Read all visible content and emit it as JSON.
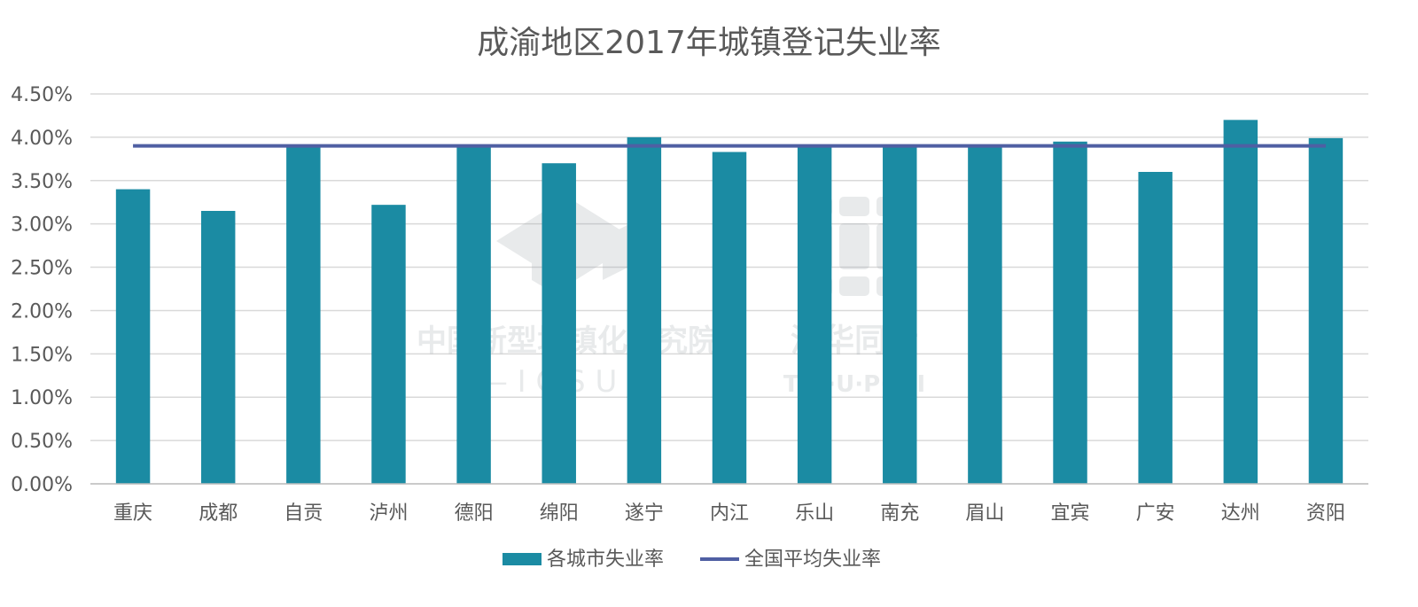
{
  "chart_data": {
    "type": "bar",
    "title": "成渝地区2017年城镇登记失业率",
    "categories": [
      "重庆",
      "成都",
      "自贡",
      "泸州",
      "德阳",
      "绵阳",
      "遂宁",
      "内江",
      "乐山",
      "南充",
      "眉山",
      "宜宾",
      "广安",
      "达州",
      "资阳"
    ],
    "series": [
      {
        "name": "各城市失业率",
        "type": "bar",
        "color": "#1B8BA3",
        "values": [
          3.4,
          3.15,
          3.9,
          3.22,
          3.9,
          3.7,
          4.0,
          3.83,
          3.9,
          3.9,
          3.9,
          3.95,
          3.6,
          4.2,
          3.99
        ]
      },
      {
        "name": "全国平均失业率",
        "type": "line",
        "color": "#4F5FA3",
        "values": [
          3.9,
          3.9,
          3.9,
          3.9,
          3.9,
          3.9,
          3.9,
          3.9,
          3.9,
          3.9,
          3.9,
          3.9,
          3.9,
          3.9,
          3.9
        ]
      }
    ],
    "ylim": [
      0,
      4.5
    ],
    "yticks": [
      0,
      0.5,
      1.0,
      1.5,
      2.0,
      2.5,
      3.0,
      3.5,
      4.0,
      4.5
    ],
    "ytick_labels": [
      "0.00%",
      "0.50%",
      "1.00%",
      "1.50%",
      "2.00%",
      "2.50%",
      "3.00%",
      "3.50%",
      "4.00%",
      "4.50%"
    ],
    "xlabel": "",
    "ylabel": "",
    "grid": true,
    "legend_position": "bottom-center"
  },
  "watermark": {
    "left_text": "中国新型城镇化研究院",
    "left_sub": "— I C S U —",
    "right_text": "清华同衡",
    "right_sub": "T·H·U·P·D·I"
  }
}
